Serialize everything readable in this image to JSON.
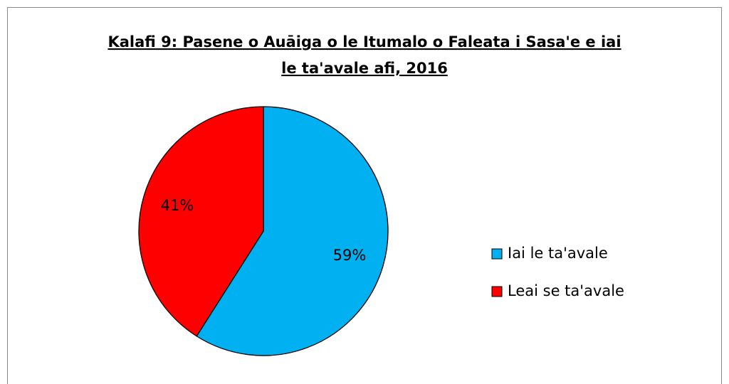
{
  "chart_data": {
    "type": "pie",
    "title": [
      "Kalafi 9: Pasene o Auāiga o le Itumalo o Faleata i Sasa'e e iai",
      "le ta'avale afi, 2016"
    ],
    "categories": [
      "Iai le ta'avale",
      "Leai se ta'avale"
    ],
    "values": [
      59,
      41
    ],
    "value_labels": [
      "59%",
      "41%"
    ],
    "colors": [
      "#00b0f0",
      "#ff0000"
    ],
    "legend": "right"
  }
}
